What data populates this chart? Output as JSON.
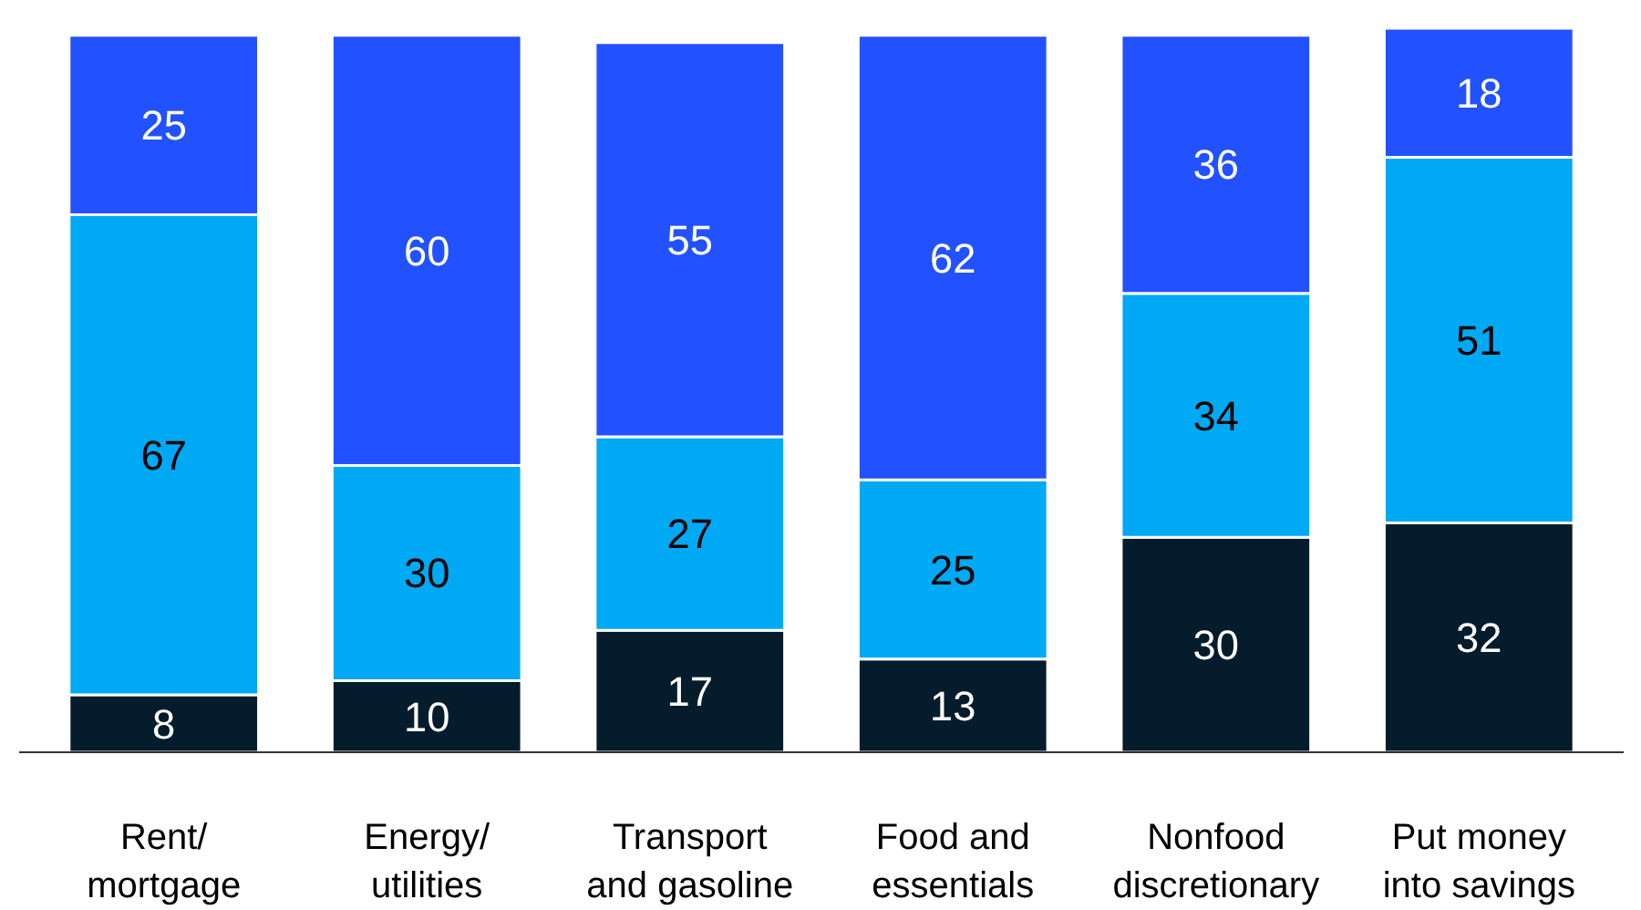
{
  "chart_data": {
    "type": "bar",
    "stacked": true,
    "categories": [
      "Rent/ mortgage",
      "Energy/ utilities",
      "Transport and gasoline",
      "Food and essentials",
      "Nonfood discretionary",
      "Put money into savings"
    ],
    "series": [
      {
        "color": "#051c2c",
        "values": [
          8,
          10,
          17,
          13,
          30,
          32
        ]
      },
      {
        "color": "#00a9f4",
        "values": [
          67,
          30,
          27,
          25,
          34,
          51
        ]
      },
      {
        "color": "#2251ff",
        "values": [
          25,
          60,
          55,
          62,
          36,
          18
        ]
      }
    ],
    "ylim": [
      0,
      101
    ],
    "tick_labels": "x",
    "data_labels": true,
    "grid": false
  }
}
